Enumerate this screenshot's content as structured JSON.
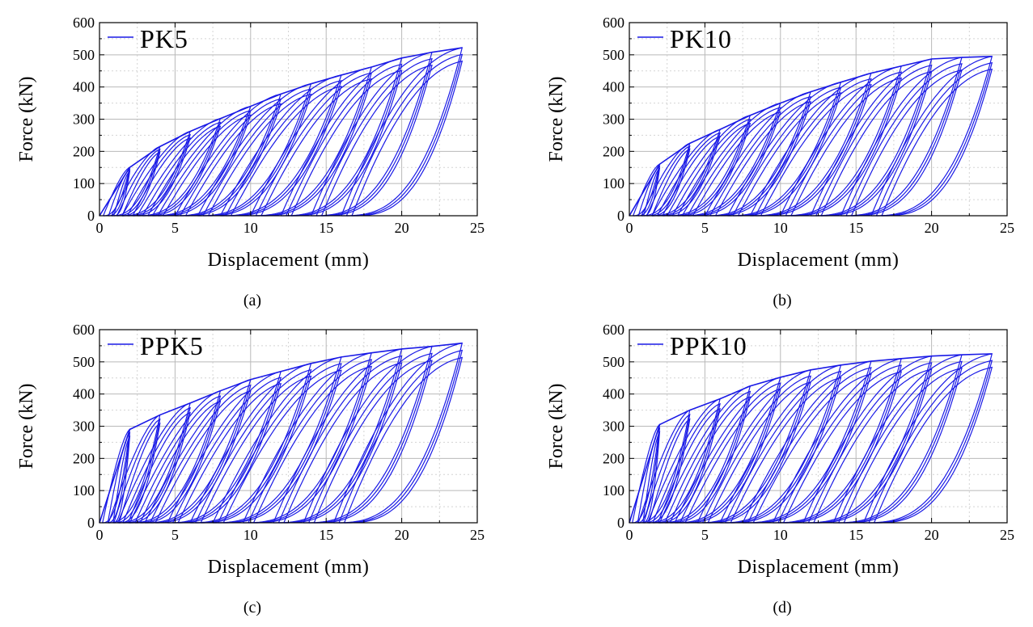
{
  "colors": {
    "series": "#1a1ae6",
    "grid": "#b9b9b9",
    "axis": "#000000"
  },
  "chart_data": [
    {
      "type": "line",
      "caption": "(a)",
      "series_name": "PK5",
      "xlabel": "Displacement (mm)",
      "ylabel": "Force (kN)",
      "xlim": [
        0,
        25
      ],
      "ylim": [
        0,
        600
      ],
      "xticks": [
        0,
        5,
        10,
        15,
        20,
        25
      ],
      "yticks": [
        0,
        100,
        200,
        300,
        400,
        500,
        600
      ],
      "grid": true,
      "legend_position": "top-left",
      "cycles": [
        {
          "d": 2,
          "f": 150,
          "r": 0.25
        },
        {
          "d": 4,
          "f": 215,
          "r": 0.8
        },
        {
          "d": 6,
          "f": 262,
          "r": 1.5
        },
        {
          "d": 8,
          "f": 302,
          "r": 2.5
        },
        {
          "d": 10,
          "f": 340,
          "r": 3.5
        },
        {
          "d": 12,
          "f": 378,
          "r": 5
        },
        {
          "d": 14,
          "f": 410,
          "r": 6.5
        },
        {
          "d": 16,
          "f": 437,
          "r": 8
        },
        {
          "d": 18,
          "f": 462,
          "r": 10
        },
        {
          "d": 20,
          "f": 490,
          "r": 12
        },
        {
          "d": 22,
          "f": 508,
          "r": 14
        },
        {
          "d": 24,
          "f": 522,
          "r": 16
        }
      ]
    },
    {
      "type": "line",
      "caption": "(b)",
      "series_name": "PK10",
      "xlabel": "Displacement (mm)",
      "ylabel": "Force (kN)",
      "xlim": [
        0,
        25
      ],
      "ylim": [
        0,
        600
      ],
      "xticks": [
        0,
        5,
        10,
        15,
        20,
        25
      ],
      "yticks": [
        0,
        100,
        200,
        300,
        400,
        500,
        600
      ],
      "grid": true,
      "legend_position": "top-left",
      "cycles": [
        {
          "d": 2,
          "f": 160,
          "r": 0.25
        },
        {
          "d": 4,
          "f": 225,
          "r": 0.8
        },
        {
          "d": 6,
          "f": 268,
          "r": 1.5
        },
        {
          "d": 8,
          "f": 312,
          "r": 2.5
        },
        {
          "d": 10,
          "f": 350,
          "r": 3.5
        },
        {
          "d": 12,
          "f": 385,
          "r": 5
        },
        {
          "d": 14,
          "f": 415,
          "r": 6.5
        },
        {
          "d": 16,
          "f": 443,
          "r": 8
        },
        {
          "d": 18,
          "f": 465,
          "r": 10
        },
        {
          "d": 20,
          "f": 487,
          "r": 12
        },
        {
          "d": 22,
          "f": 492,
          "r": 14
        },
        {
          "d": 24,
          "f": 495,
          "r": 16
        }
      ]
    },
    {
      "type": "line",
      "caption": "(c)",
      "series_name": "PPK5",
      "xlabel": "Displacement (mm)",
      "ylabel": "Force (kN)",
      "xlim": [
        0,
        25
      ],
      "ylim": [
        0,
        600
      ],
      "xticks": [
        0,
        5,
        10,
        15,
        20,
        25
      ],
      "yticks": [
        0,
        100,
        200,
        300,
        400,
        500,
        600
      ],
      "grid": true,
      "legend_position": "top-left",
      "cycles": [
        {
          "d": 2,
          "f": 290,
          "r": 0.2
        },
        {
          "d": 4,
          "f": 335,
          "r": 0.6
        },
        {
          "d": 6,
          "f": 372,
          "r": 1.2
        },
        {
          "d": 8,
          "f": 410,
          "r": 2
        },
        {
          "d": 10,
          "f": 445,
          "r": 3
        },
        {
          "d": 12,
          "f": 470,
          "r": 4.5
        },
        {
          "d": 14,
          "f": 495,
          "r": 6
        },
        {
          "d": 16,
          "f": 515,
          "r": 7.5
        },
        {
          "d": 18,
          "f": 528,
          "r": 9.5
        },
        {
          "d": 20,
          "f": 540,
          "r": 11.5
        },
        {
          "d": 22,
          "f": 548,
          "r": 13.5
        },
        {
          "d": 24,
          "f": 558,
          "r": 15.5
        }
      ]
    },
    {
      "type": "line",
      "caption": "(d)",
      "series_name": "PPK10",
      "xlabel": "Displacement (mm)",
      "ylabel": "Force (kN)",
      "xlim": [
        0,
        25
      ],
      "ylim": [
        0,
        600
      ],
      "xticks": [
        0,
        5,
        10,
        15,
        20,
        25
      ],
      "yticks": [
        0,
        100,
        200,
        300,
        400,
        500,
        600
      ],
      "grid": true,
      "legend_position": "top-left",
      "cycles": [
        {
          "d": 2,
          "f": 305,
          "r": 0.2
        },
        {
          "d": 4,
          "f": 350,
          "r": 0.6
        },
        {
          "d": 6,
          "f": 385,
          "r": 1.2
        },
        {
          "d": 8,
          "f": 425,
          "r": 2
        },
        {
          "d": 10,
          "f": 452,
          "r": 3
        },
        {
          "d": 12,
          "f": 475,
          "r": 4.5
        },
        {
          "d": 14,
          "f": 490,
          "r": 6
        },
        {
          "d": 16,
          "f": 502,
          "r": 7.5
        },
        {
          "d": 18,
          "f": 510,
          "r": 9.5
        },
        {
          "d": 20,
          "f": 518,
          "r": 11.5
        },
        {
          "d": 22,
          "f": 522,
          "r": 13.5
        },
        {
          "d": 24,
          "f": 525,
          "r": 15.5
        }
      ]
    }
  ]
}
